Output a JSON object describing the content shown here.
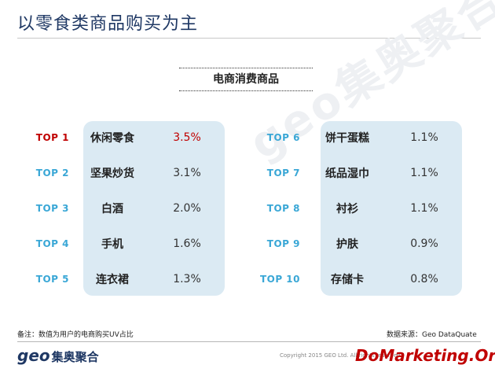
{
  "header": {
    "title": "以零食类商品购买为主"
  },
  "watermark": "geo集奥聚合",
  "section_title": "电商消费商品",
  "left_items": [
    {
      "rank": "TOP 1",
      "name": "休闲零食",
      "value": "3.5%"
    },
    {
      "rank": "TOP 2",
      "name": "坚果炒货",
      "value": "3.1%"
    },
    {
      "rank": "TOP 3",
      "name": "白酒",
      "value": "2.0%"
    },
    {
      "rank": "TOP 4",
      "name": "手机",
      "value": "1.6%"
    },
    {
      "rank": "TOP 5",
      "name": "连衣裙",
      "value": "1.3%"
    }
  ],
  "right_items": [
    {
      "rank": "TOP 6",
      "name": "饼干蛋糕",
      "value": "1.1%"
    },
    {
      "rank": "TOP 7",
      "name": "纸品湿巾",
      "value": "1.1%"
    },
    {
      "rank": "TOP 8",
      "name": "衬衫",
      "value": "1.1%"
    },
    {
      "rank": "TOP 9",
      "name": "护肤",
      "value": "0.9%"
    },
    {
      "rank": "TOP 10",
      "name": "存储卡",
      "value": "0.8%"
    }
  ],
  "footer": {
    "note": "备注：数值为用户的电商购买UV占比",
    "source": "数据来源：Geo DataQuate",
    "logo_latin": "geo",
    "logo_cn": "集奥聚合",
    "copyright": "Copyright 2015 GEO Ltd. All rights reserved",
    "site": "DoMarketing.Org"
  },
  "colors": {
    "title": "#1f3864",
    "rank": "#3aa7d6",
    "top1": "#c00000",
    "panel": "#dbeaf3"
  }
}
